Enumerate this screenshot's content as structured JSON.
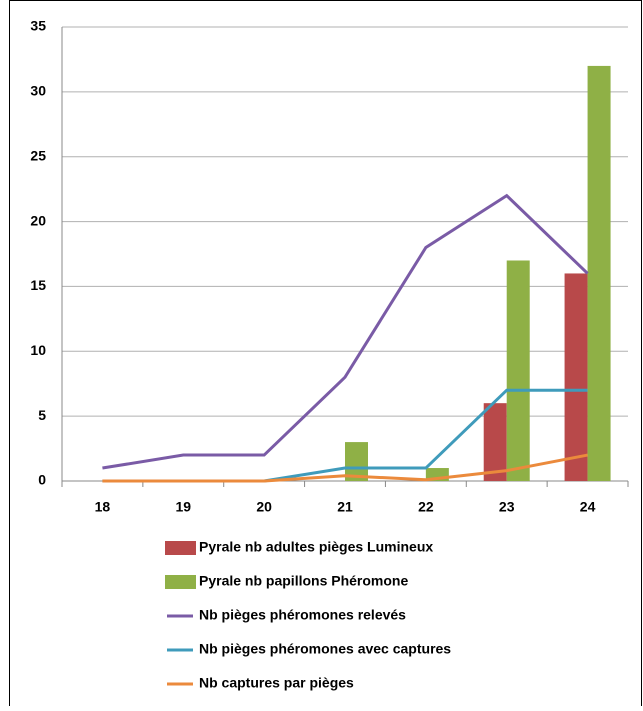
{
  "chart_data": {
    "type": "combo",
    "categories": [
      "18",
      "19",
      "20",
      "21",
      "22",
      "23",
      "24"
    ],
    "series": [
      {
        "name": "Pyrale nb adultes pièges Lumineux",
        "type": "bar",
        "color": "#b8494a",
        "values": [
          0,
          0,
          0,
          0,
          0,
          6,
          16
        ]
      },
      {
        "name": "Pyrale nb papillons Phéromone",
        "type": "bar",
        "color": "#8fb046",
        "values": [
          0,
          0,
          0,
          3,
          1,
          17,
          32
        ]
      },
      {
        "name": "Nb pièges phéromones relevés",
        "type": "line",
        "color": "#7a5ba6",
        "values": [
          1,
          2,
          2,
          8,
          18,
          22,
          16
        ]
      },
      {
        "name": "Nb pièges phéromones avec captures",
        "type": "line",
        "color": "#3f9bbb",
        "values": [
          0,
          0,
          0,
          1,
          1,
          7,
          7
        ]
      },
      {
        "name": "Nb captures par pièges",
        "type": "line",
        "color": "#eb8a3c",
        "values": [
          0,
          0,
          0,
          0.4,
          0.1,
          0.8,
          2
        ]
      }
    ],
    "ylim": [
      0,
      35
    ],
    "yticks": [
      0,
      5,
      10,
      15,
      20,
      25,
      30,
      35
    ],
    "grid": true,
    "legend": "bottom"
  }
}
